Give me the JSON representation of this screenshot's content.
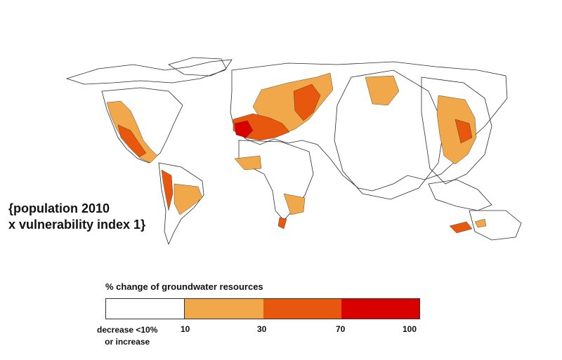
{
  "caption": "{population 2010\nx vulnerability index 1}",
  "legend": {
    "title": "% change of groundwater resources",
    "classes": [
      {
        "label": "decrease <10%\nor increase",
        "color": "#ffffff"
      },
      {
        "label": "10",
        "color": "#f0a84a"
      },
      {
        "label": "30",
        "color": "#e8570e"
      },
      {
        "label": "70",
        "color": "#d90000"
      },
      {
        "label": "100",
        "color": "#d90000"
      }
    ],
    "tick_labels": [
      "decrease <10%\nor increase",
      "10",
      "30",
      "70",
      "100"
    ]
  },
  "colors": {
    "low": "#f0a84a",
    "mid": "#e8570e",
    "high": "#d90000",
    "outline": "#2a2a2a"
  }
}
